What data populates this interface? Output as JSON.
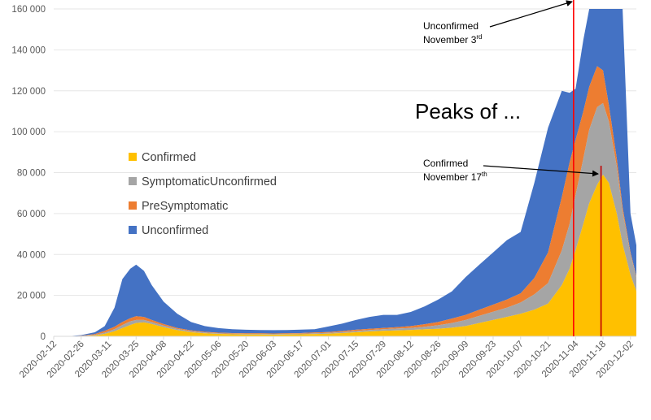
{
  "chart_data": {
    "type": "area",
    "stacked": true,
    "ylim": [
      0,
      160000
    ],
    "yticks": [
      0,
      20000,
      40000,
      60000,
      80000,
      100000,
      120000,
      140000,
      160000
    ],
    "ytick_labels": [
      "0",
      "20 000",
      "40 000",
      "60 000",
      "80 000",
      "100 000",
      "120 000",
      "140 000",
      "160 000"
    ],
    "xlim": [
      "2020-02-12",
      "2020-12-05"
    ],
    "xticks": [
      "2020-02-12",
      "2020-02-26",
      "2020-03-11",
      "2020-03-25",
      "2020-04-08",
      "2020-04-22",
      "2020-05-06",
      "2020-05-20",
      "2020-06-03",
      "2020-06-17",
      "2020-07-01",
      "2020-07-15",
      "2020-07-29",
      "2020-08-12",
      "2020-08-26",
      "2020-09-09",
      "2020-09-23",
      "2020-10-07",
      "2020-10-21",
      "2020-11-04",
      "2020-11-18",
      "2020-12-02"
    ],
    "grid": "horizontal",
    "legend_position": "left",
    "x": [
      "2020-02-12",
      "2020-02-19",
      "2020-02-26",
      "2020-03-04",
      "2020-03-09",
      "2020-03-14",
      "2020-03-18",
      "2020-03-22",
      "2020-03-25",
      "2020-03-29",
      "2020-04-02",
      "2020-04-08",
      "2020-04-15",
      "2020-04-22",
      "2020-04-29",
      "2020-05-06",
      "2020-05-13",
      "2020-05-20",
      "2020-05-27",
      "2020-06-03",
      "2020-06-10",
      "2020-06-17",
      "2020-06-24",
      "2020-07-01",
      "2020-07-08",
      "2020-07-15",
      "2020-07-22",
      "2020-07-29",
      "2020-08-05",
      "2020-08-12",
      "2020-08-19",
      "2020-08-26",
      "2020-09-02",
      "2020-09-09",
      "2020-09-16",
      "2020-09-23",
      "2020-09-30",
      "2020-10-07",
      "2020-10-14",
      "2020-10-21",
      "2020-10-28",
      "2020-11-01",
      "2020-11-04",
      "2020-11-08",
      "2020-11-11",
      "2020-11-15",
      "2020-11-18",
      "2020-11-21",
      "2020-11-25",
      "2020-11-28",
      "2020-12-02",
      "2020-12-05"
    ],
    "series": [
      {
        "name": "Confirmed",
        "color": "#ffc000",
        "values": [
          0,
          0,
          100,
          400,
          1200,
          2500,
          4000,
          5500,
          6500,
          6800,
          6000,
          4500,
          3000,
          2000,
          1500,
          1200,
          1000,
          900,
          900,
          800,
          900,
          1000,
          1100,
          1300,
          1600,
          2000,
          2400,
          2700,
          2900,
          3100,
          3400,
          3700,
          4200,
          5000,
          6500,
          8000,
          9500,
          11000,
          13000,
          16000,
          25000,
          33000,
          42000,
          55000,
          65000,
          74000,
          79000,
          75000,
          60000,
          45000,
          30000,
          22000
        ]
      },
      {
        "name": "SymptomaticUnconfirmed",
        "color": "#a5a5a5",
        "values": [
          0,
          0,
          100,
          300,
          600,
          1000,
          1500,
          1800,
          1500,
          1200,
          1000,
          800,
          600,
          500,
          400,
          300,
          300,
          300,
          300,
          300,
          300,
          300,
          400,
          400,
          500,
          600,
          700,
          800,
          900,
          1000,
          1300,
          1700,
          2300,
          3000,
          3500,
          4000,
          4500,
          5500,
          7500,
          10000,
          17000,
          22000,
          27000,
          32000,
          36000,
          38000,
          35000,
          30000,
          23000,
          16000,
          10000,
          7000
        ]
      },
      {
        "name": "PreSymptomatic",
        "color": "#ed7d31",
        "values": [
          0,
          0,
          100,
          400,
          900,
          1200,
          1500,
          1500,
          1800,
          1500,
          1000,
          700,
          500,
          400,
          300,
          300,
          300,
          300,
          300,
          300,
          300,
          300,
          400,
          400,
          500,
          600,
          600,
          600,
          700,
          900,
          1200,
          1600,
          2200,
          2500,
          3000,
          3500,
          4000,
          4500,
          8000,
          15000,
          26000,
          30000,
          27000,
          23000,
          21000,
          20000,
          16000,
          8000,
          4000,
          2000,
          1000,
          500
        ]
      },
      {
        "name": "Unconfirmed",
        "color": "#4472c4",
        "values": [
          0,
          0,
          300,
          900,
          2300,
          9300,
          21000,
          24200,
          25200,
          22500,
          17000,
          11000,
          6900,
          4100,
          2800,
          2200,
          1900,
          1700,
          1600,
          1600,
          1600,
          1700,
          1600,
          2700,
          3600,
          4800,
          5800,
          6400,
          6000,
          6900,
          8700,
          11000,
          13300,
          18500,
          22000,
          25500,
          29000,
          30000,
          46500,
          61000,
          52000,
          34000,
          25000,
          35000,
          38000,
          28000,
          30000,
          47000,
          73000,
          97000,
          19000,
          15000
        ]
      }
    ],
    "annotations": [
      {
        "date": "2020-11-03",
        "line_color": "#ff0000",
        "label_line1": "Unconfirmed",
        "label_line2": "November 3",
        "label_sup": "rd",
        "arrow_to_y": 160000
      },
      {
        "date": "2020-11-17",
        "line_color": "#c00000",
        "label_line1": "Confirmed",
        "label_line2": "November 17",
        "label_sup": "th",
        "arrow_to_y": 79000
      }
    ],
    "headline": "Peaks of ..."
  }
}
